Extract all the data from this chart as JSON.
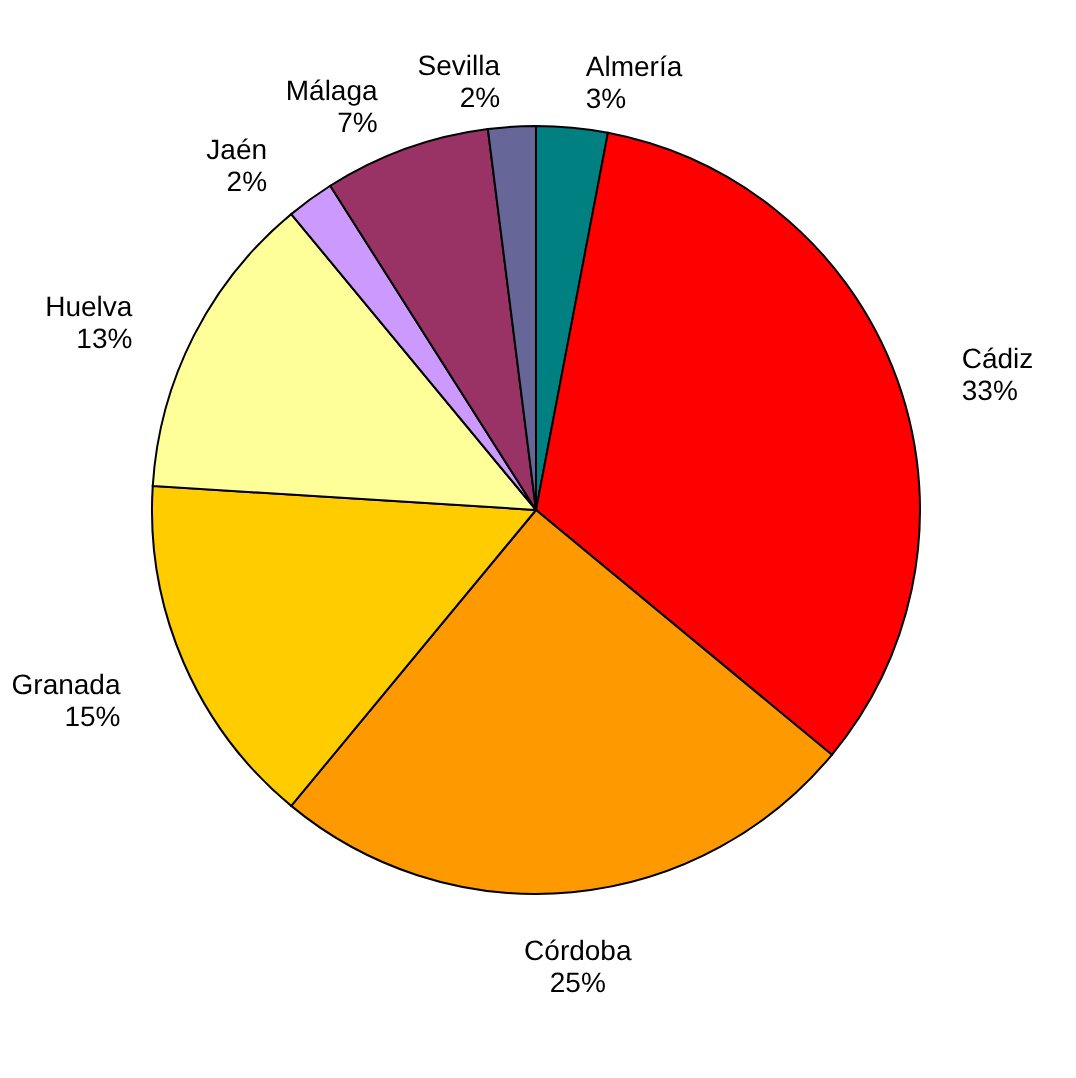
{
  "chart_data": {
    "type": "pie",
    "categories": [
      "Almería",
      "Cádiz",
      "Córdoba",
      "Granada",
      "Huelva",
      "Jaén",
      "Málaga",
      "Sevilla"
    ],
    "values": [
      3,
      33,
      25,
      15,
      13,
      2,
      7,
      2
    ],
    "colors": [
      "#008080",
      "#ff0000",
      "#ff9900",
      "#ffcc00",
      "#ffff99",
      "#cc99ff",
      "#993366",
      "#666699"
    ],
    "value_labels": [
      "3%",
      "33%",
      "25%",
      "15%",
      "13%",
      "2%",
      "7%",
      "2%"
    ],
    "legend": false
  }
}
